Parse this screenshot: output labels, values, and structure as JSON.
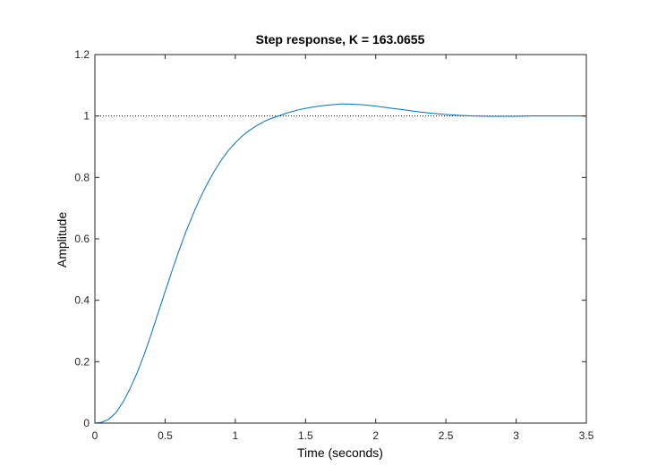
{
  "chart_data": {
    "type": "line",
    "title": "Step response, K = 163.0655",
    "xlabel": "Time (seconds)",
    "ylabel": "Amplitude",
    "xlim": [
      0,
      3.5
    ],
    "ylim": [
      0,
      1.2
    ],
    "xticks": [
      0,
      0.5,
      1,
      1.5,
      2,
      2.5,
      3,
      3.5
    ],
    "xtick_labels": [
      "0",
      "0.5",
      "1",
      "1.5",
      "2",
      "2.5",
      "3",
      "3.5"
    ],
    "yticks": [
      0,
      0.2,
      0.4,
      0.6,
      0.8,
      1,
      1.2
    ],
    "ytick_labels": [
      "0",
      "0.2",
      "0.4",
      "0.6",
      "0.8",
      "1",
      "1.2"
    ],
    "grid": false,
    "reference_line": {
      "y": 1,
      "style": "dotted",
      "color": "#000000"
    },
    "series": [
      {
        "color": "#0072bd",
        "x": [
          0,
          0.05,
          0.1,
          0.15,
          0.2,
          0.25,
          0.3,
          0.35,
          0.4,
          0.45,
          0.5,
          0.55,
          0.6,
          0.65,
          0.7,
          0.75,
          0.8,
          0.85,
          0.9,
          0.95,
          1.0,
          1.05,
          1.1,
          1.15,
          1.2,
          1.25,
          1.3,
          1.35,
          1.4,
          1.45,
          1.5,
          1.55,
          1.6,
          1.65,
          1.7,
          1.75,
          1.8,
          1.85,
          1.9,
          2.0,
          2.1,
          2.2,
          2.3,
          2.4,
          2.5,
          2.6,
          2.7,
          2.8,
          2.9,
          3.0,
          3.1,
          3.2,
          3.3,
          3.4,
          3.5
        ],
        "y": [
          0,
          0.003,
          0.013,
          0.034,
          0.068,
          0.112,
          0.163,
          0.222,
          0.288,
          0.358,
          0.428,
          0.497,
          0.563,
          0.625,
          0.681,
          0.733,
          0.779,
          0.82,
          0.856,
          0.887,
          0.913,
          0.935,
          0.953,
          0.968,
          0.981,
          0.991,
          0.999,
          1.007,
          1.014,
          1.02,
          1.025,
          1.029,
          1.032,
          1.035,
          1.037,
          1.039,
          1.039,
          1.038,
          1.037,
          1.032,
          1.026,
          1.02,
          1.014,
          1.009,
          1.005,
          1.002,
          1.0,
          0.999,
          0.999,
          0.999,
          1.0,
          1.0,
          1.0,
          1.0,
          1.0
        ]
      }
    ]
  }
}
